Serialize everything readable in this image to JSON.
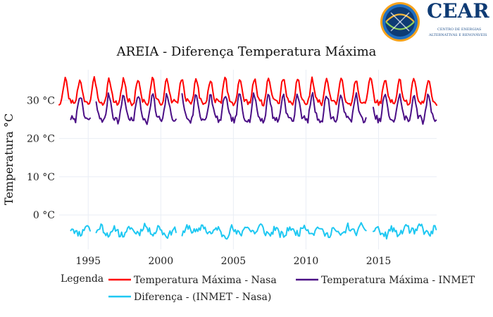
{
  "chart_data": {
    "type": "line",
    "title": "AREIA - Diferença Temperatura Máxima",
    "ylabel": "Temperatura °C",
    "xlabel": "",
    "xlim": [
      1993.0,
      2019.0
    ],
    "ylim": [
      -9,
      38
    ],
    "x_ticks": [
      1995,
      2000,
      2005,
      2010,
      2015
    ],
    "y_ticks": [
      0,
      10,
      20,
      30
    ],
    "y_tick_labels": [
      "0 °C",
      "10 °C",
      "20 °C",
      "30 °C"
    ],
    "grid": true,
    "legend": {
      "title": "Legenda",
      "placement": "bottom"
    },
    "series": [
      {
        "name": "Temperatura Máxima - Nasa",
        "color": "#ff0000",
        "kind": "seasonal",
        "x_start": 1993.0,
        "x_end": 2019.0,
        "step": 0.0833333,
        "base": 31.5,
        "amp": 3.0,
        "phase": 0.55,
        "noise": 0.7,
        "seed": 3,
        "gaps": []
      },
      {
        "name": "Temperatura Máxima - INMET",
        "color": "#4b0f86",
        "kind": "seasonal",
        "x_start": 1993.8,
        "x_end": 2019.0,
        "step": 0.0833333,
        "base": 27.2,
        "amp": 3.2,
        "phase": 0.55,
        "noise": 0.8,
        "seed": 7,
        "gaps": [
          [
            1995.2,
            1995.5
          ],
          [
            2001.1,
            2001.45
          ],
          [
            2014.2,
            2014.55
          ]
        ]
      },
      {
        "name": "Diferença - (INMET - Nasa)",
        "color": "#1ec8f2",
        "kind": "difference",
        "x_start": 1993.8,
        "x_end": 2019.0,
        "step": 0.0833333,
        "base": -4.2,
        "amp": 0.9,
        "phase": 0.1,
        "noise": 0.9,
        "seed": 11,
        "gaps": [
          [
            1995.2,
            1995.5
          ],
          [
            2001.1,
            2001.45
          ],
          [
            2014.2,
            2014.55
          ]
        ]
      }
    ]
  },
  "logo": {
    "text": "CEAR",
    "subtitle_line1": "CENTRO DE ENERGIAS",
    "subtitle_line2": "ALTERNATIVAS E RENOVÁVEIS"
  }
}
